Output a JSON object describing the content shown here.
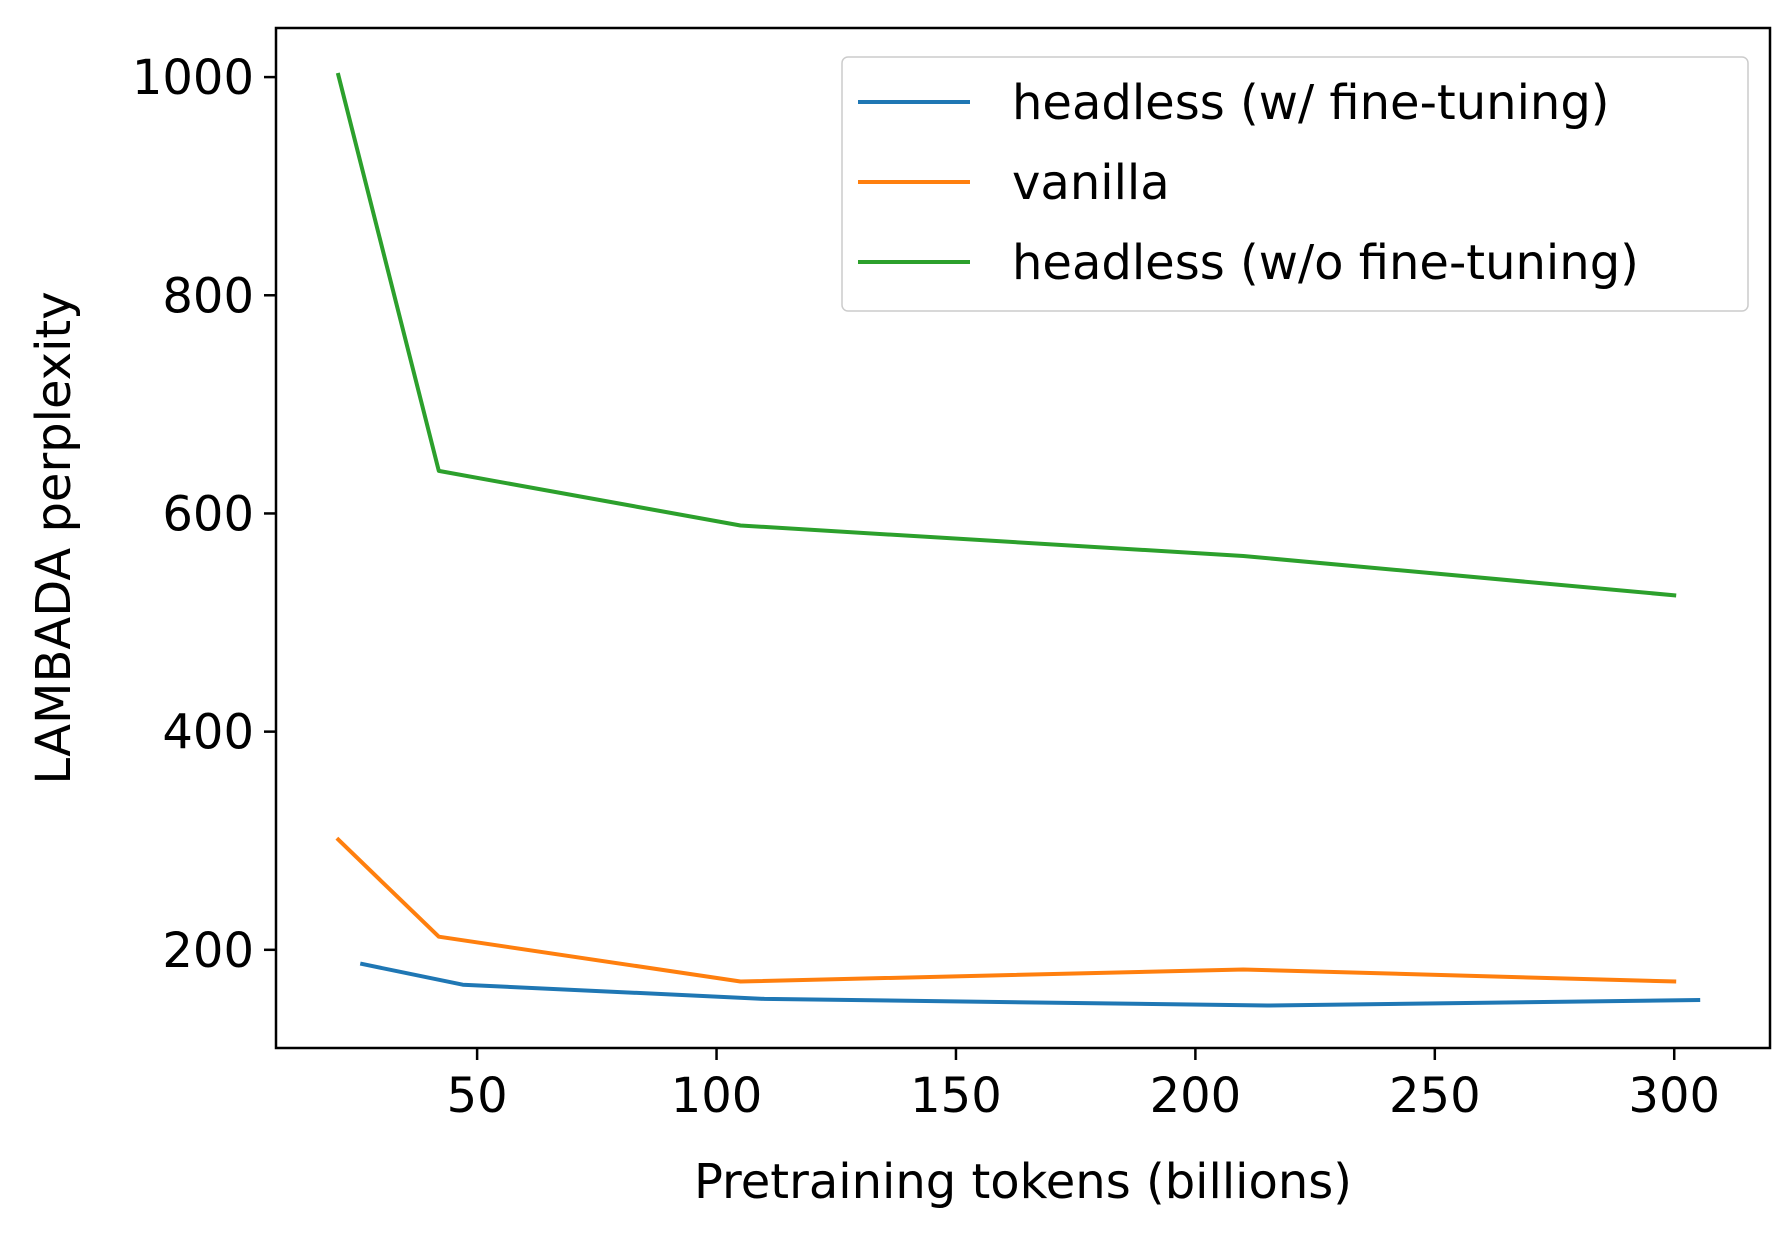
{
  "chart_data": {
    "type": "line",
    "title": "",
    "xlabel": "Pretraining tokens (billions)",
    "ylabel": "LAMBADA perplexity",
    "xlim": [
      8,
      320
    ],
    "ylim": [
      110,
      1045
    ],
    "xticks": [
      50,
      100,
      150,
      200,
      250,
      300
    ],
    "yticks": [
      200,
      400,
      600,
      800,
      1000
    ],
    "xtick_labels": [
      "50",
      "100",
      "150",
      "200",
      "250",
      "300"
    ],
    "ytick_labels": [
      "200",
      "400",
      "600",
      "800",
      "1000"
    ],
    "grid": false,
    "legend_position": "top-right",
    "series": [
      {
        "name": "headless (w/ fine-tuning)",
        "color": "#1f77b4",
        "x": [
          26,
          47,
          110,
          215,
          305
        ],
        "y": [
          187,
          168,
          155,
          149,
          154
        ]
      },
      {
        "name": "vanilla",
        "color": "#ff7f0e",
        "x": [
          21,
          42,
          105,
          210,
          300
        ],
        "y": [
          301,
          212,
          171,
          182,
          171
        ]
      },
      {
        "name": "headless (w/o fine-tuning)",
        "color": "#2ca02c",
        "x": [
          21,
          42,
          105,
          210,
          300
        ],
        "y": [
          1002,
          639,
          589,
          561,
          525
        ]
      }
    ]
  }
}
